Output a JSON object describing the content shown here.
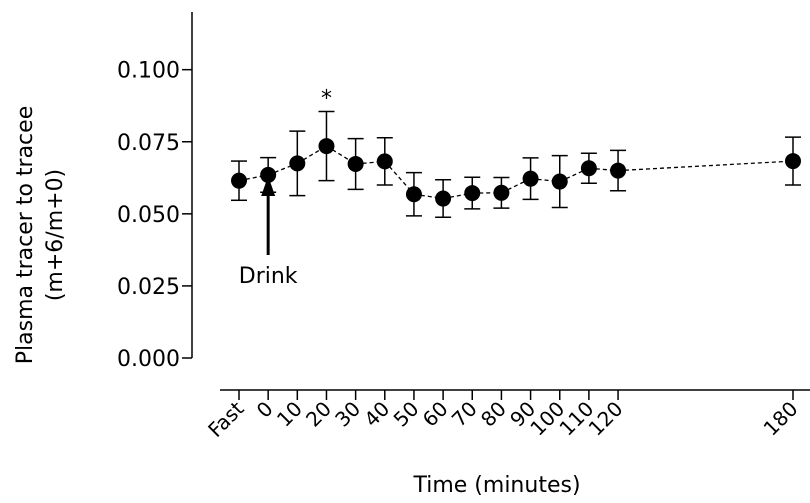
{
  "chart_data": {
    "type": "line",
    "xlabel": "Time (minutes)",
    "ylabel_lines": [
      "Plasma tracer to tracee",
      "(m+6/m+0)"
    ],
    "ylim": [
      0,
      0.12
    ],
    "yticks": [
      0.0,
      0.025,
      0.05,
      0.075,
      0.1
    ],
    "ytick_labels": [
      "0.000",
      "0.025",
      "0.050",
      "0.075",
      "0.100"
    ],
    "x_categories": [
      "Fast",
      "0",
      "10",
      "20",
      "30",
      "40",
      "50",
      "60",
      "70",
      "80",
      "90",
      "100",
      "110",
      "120",
      "180"
    ],
    "x_values": [
      -10,
      0,
      10,
      20,
      30,
      40,
      50,
      60,
      70,
      80,
      90,
      100,
      110,
      120,
      180
    ],
    "xlim": [
      -10,
      180
    ],
    "series": [
      {
        "values": [
          0.0615,
          0.0635,
          0.0675,
          0.0735,
          0.0673,
          0.0682,
          0.0568,
          0.0553,
          0.0572,
          0.0573,
          0.0622,
          0.0612,
          0.0658,
          0.065,
          0.0683
        ],
        "error": [
          0.0068,
          0.006,
          0.0112,
          0.012,
          0.0088,
          0.0082,
          0.0075,
          0.0065,
          0.0055,
          0.0053,
          0.0072,
          0.009,
          0.0052,
          0.007,
          0.0083
        ],
        "line_style": "dashed",
        "marker": "filled-circle",
        "color": "#000000"
      }
    ],
    "annotations": {
      "asterisk": "*",
      "asterisk_x": 20,
      "drink_label": "Drink",
      "drink_x": 0
    },
    "grid": false,
    "legend": "none"
  }
}
